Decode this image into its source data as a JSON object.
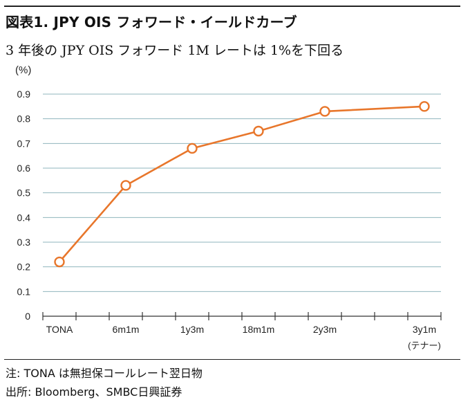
{
  "header": {
    "title": "図表1.  JPY OIS  フォワード・イールドカーブ",
    "subtitle": "3 年後の JPY OIS  フォワード 1M レートは 1%を下回る"
  },
  "chart_data": {
    "type": "line",
    "ylabel": "(%)",
    "ylim": [
      0,
      0.9
    ],
    "yticks": [
      "0",
      "0.1",
      "0.2",
      "0.3",
      "0.4",
      "0.5",
      "0.6",
      "0.7",
      "0.8",
      "0.9"
    ],
    "grid": true,
    "x_ticks_total": 12,
    "categories": [
      "TONA",
      "6m1m",
      "1y3m",
      "18m1m",
      "2y3m",
      "3y1m"
    ],
    "category_index": [
      0,
      2,
      4,
      6,
      8,
      11
    ],
    "category_sublabel": {
      "3y1m": "(テナー)"
    },
    "series": [
      {
        "values": [
          0.22,
          0.53,
          0.68,
          0.75,
          0.83,
          0.85
        ],
        "color": "#e8762b",
        "marker": "hollow-circle"
      }
    ]
  },
  "footer": {
    "note": "注: TONA は無担保コールレート翌日物",
    "source": "出所: Bloomberg、SMBC日興証券"
  }
}
